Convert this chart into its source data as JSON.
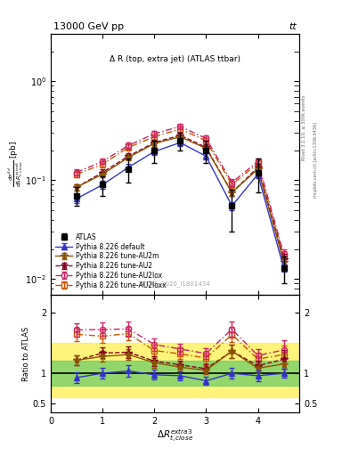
{
  "title_top": "13000 GeV pp",
  "title_top_right": "tt",
  "plot_title": "Δ R (top, extra jet) (ATLAS ttbar)",
  "watermark": "ATLAS_2020_I1801434",
  "rivet_label": "Rivet 3.1.10, ≥ 300k events",
  "mcplots_label": "mcplots.cern.ch [arXiv:1306.3436]",
  "ylabel_ratio": "Ratio to ATLAS",
  "x_values": [
    0.5,
    1.0,
    1.5,
    2.0,
    2.5,
    3.0,
    3.5,
    4.0,
    4.5
  ],
  "atlas_y": [
    0.07,
    0.09,
    0.13,
    0.2,
    0.25,
    0.2,
    0.055,
    0.12,
    0.013
  ],
  "atlas_yerr_lo": [
    0.015,
    0.02,
    0.035,
    0.05,
    0.05,
    0.05,
    0.025,
    0.045,
    0.004
  ],
  "atlas_yerr_hi": [
    0.015,
    0.02,
    0.035,
    0.05,
    0.05,
    0.05,
    0.025,
    0.045,
    0.004
  ],
  "py_default_y": [
    0.065,
    0.09,
    0.135,
    0.195,
    0.24,
    0.175,
    0.055,
    0.115,
    0.013
  ],
  "py_default_yerr": [
    0.006,
    0.008,
    0.012,
    0.016,
    0.018,
    0.014,
    0.005,
    0.01,
    0.001
  ],
  "py_AU2_y": [
    0.085,
    0.12,
    0.175,
    0.24,
    0.285,
    0.215,
    0.075,
    0.135,
    0.016
  ],
  "py_AU2_yerr": [
    0.006,
    0.008,
    0.012,
    0.016,
    0.018,
    0.014,
    0.006,
    0.01,
    0.002
  ],
  "py_AU2lox_y": [
    0.12,
    0.155,
    0.225,
    0.295,
    0.35,
    0.265,
    0.095,
    0.155,
    0.018
  ],
  "py_AU2lox_yerr": [
    0.008,
    0.01,
    0.015,
    0.02,
    0.022,
    0.018,
    0.007,
    0.012,
    0.002
  ],
  "py_AU2loxx_y": [
    0.115,
    0.145,
    0.215,
    0.275,
    0.33,
    0.25,
    0.09,
    0.148,
    0.017
  ],
  "py_AU2loxx_yerr": [
    0.008,
    0.01,
    0.015,
    0.018,
    0.022,
    0.016,
    0.007,
    0.012,
    0.002
  ],
  "py_AU2m_y": [
    0.085,
    0.115,
    0.17,
    0.235,
    0.275,
    0.21,
    0.075,
    0.13,
    0.015
  ],
  "py_AU2m_yerr": [
    0.006,
    0.008,
    0.012,
    0.016,
    0.018,
    0.014,
    0.006,
    0.01,
    0.002
  ],
  "atlas_color": "#000000",
  "py_default_color": "#3333cc",
  "py_AU2_color": "#880022",
  "py_AU2lox_color": "#cc2266",
  "py_AU2loxx_color": "#cc5500",
  "py_AU2m_color": "#885500",
  "band_yellow": [
    0.6,
    1.5
  ],
  "band_green": [
    0.8,
    1.2
  ],
  "ylim_main": [
    0.007,
    3.0
  ],
  "ylim_ratio": [
    0.35,
    2.3
  ],
  "xlim": [
    0.0,
    4.8
  ],
  "ratio_yticks": [
    0.5,
    1.0,
    2.0
  ],
  "ratio_yticklabels": [
    "0.5",
    "1",
    "2"
  ]
}
